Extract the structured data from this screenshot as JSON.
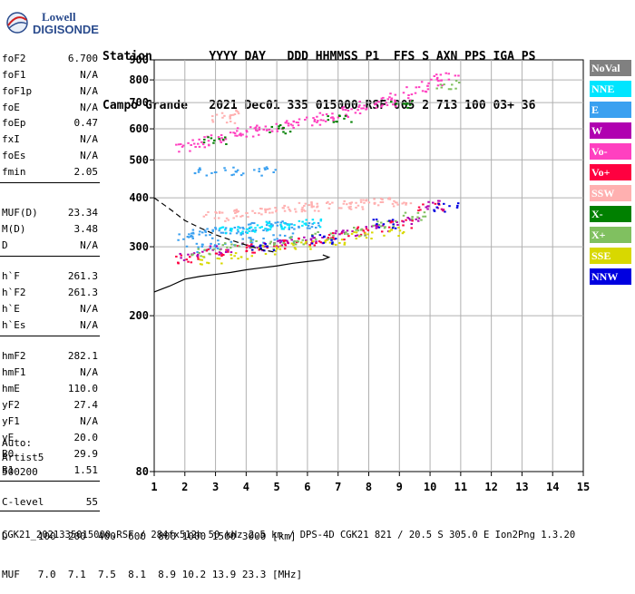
{
  "logo": {
    "line1": "Lowell",
    "line2": "DIGISONDE"
  },
  "header": {
    "row1": "Station        YYYY DAY   DDD HHMMSS P1  FFS S AXN PPS IGA PS",
    "row2": "Campo Grande   2021 Dec01 335 015000 RSF 005 2 713 100 03+ 36"
  },
  "params": [
    {
      "name": "foF2",
      "value": "6.700"
    },
    {
      "name": "foF1",
      "value": "N/A"
    },
    {
      "name": "foF1p",
      "value": "N/A"
    },
    {
      "name": "foE",
      "value": "N/A"
    },
    {
      "name": "foEp",
      "value": "0.47"
    },
    {
      "name": "fxI",
      "value": "N/A"
    },
    {
      "name": "foEs",
      "value": "N/A"
    },
    {
      "name": "fmin",
      "value": "2.05"
    },
    {
      "name": "MUF(D)",
      "value": "23.34"
    },
    {
      "name": "M(D)",
      "value": "3.48"
    },
    {
      "name": "D",
      "value": "N/A"
    },
    {
      "name": "h`F",
      "value": "261.3"
    },
    {
      "name": "h`F2",
      "value": "261.3"
    },
    {
      "name": "h`E",
      "value": "N/A"
    },
    {
      "name": "h`Es",
      "value": "N/A"
    },
    {
      "name": "hmF2",
      "value": "282.1"
    },
    {
      "name": "hmF1",
      "value": "N/A"
    },
    {
      "name": "hmE",
      "value": "110.0"
    },
    {
      "name": "yF2",
      "value": "27.4"
    },
    {
      "name": "yF1",
      "value": "N/A"
    },
    {
      "name": "yE",
      "value": "20.0"
    },
    {
      "name": "B0",
      "value": "29.9"
    },
    {
      "name": "B1",
      "value": "1.51"
    },
    {
      "name": "C-level",
      "value": "55"
    }
  ],
  "auto": {
    "line1": "Auto:",
    "line2": "Artist5",
    "line3": "500200"
  },
  "legend": [
    {
      "label": "NoVal",
      "color": "#808080"
    },
    {
      "label": "NNE",
      "color": "#00e5ff"
    },
    {
      "label": "E",
      "color": "#3aa0f0"
    },
    {
      "label": "W",
      "color": "#b000b0"
    },
    {
      "label": "Vo-",
      "color": "#ff40c0"
    },
    {
      "label": "Vo+",
      "color": "#ff0040"
    },
    {
      "label": "SSW",
      "color": "#ffb0b0"
    },
    {
      "label": "X-",
      "color": "#008000"
    },
    {
      "label": "X+",
      "color": "#80c060"
    },
    {
      "label": "SSE",
      "color": "#d8d800"
    },
    {
      "label": "NNW",
      "color": "#0000e0"
    }
  ],
  "footer": {
    "line1": "D     100  200  400  600  800 1000 1500 3000 [km]",
    "line2": "MUF   7.0  7.1  7.5  8.1  8.9 10.2 13.9 23.3 [MHz]",
    "line3": "CGK21_2021335015000.RSF / 284fx512h 50 kHz 2.5 km / DPS-4D CGK21 821 / 20.5 S 305.0 E Ion2Png 1.3.20"
  },
  "chart_data": {
    "type": "scatter",
    "xlim": [
      1,
      15
    ],
    "ylim": [
      80,
      900
    ],
    "y_scale": "log",
    "x_ticks": [
      1,
      2,
      3,
      4,
      5,
      6,
      7,
      8,
      9,
      10,
      11,
      12,
      13,
      14,
      15
    ],
    "y_ticks": [
      80,
      200,
      300,
      400,
      500,
      600,
      700,
      800,
      900
    ],
    "grid": true,
    "series": [
      {
        "name": "E",
        "color": "#3aa0f0",
        "x": [
          2.1,
          2.5,
          3.0,
          3.5,
          4.0,
          4.5,
          5.0,
          5.5,
          6.0,
          2.4,
          3.2,
          4.2,
          5.2,
          2.6,
          3.6,
          4.6
        ],
        "y": [
          320,
          325,
          330,
          332,
          335,
          338,
          340,
          342,
          345,
          300,
          305,
          310,
          318,
          470,
          470,
          470
        ]
      },
      {
        "name": "SSW",
        "color": "#ffb0b0",
        "x": [
          3.0,
          3.5,
          4.0,
          4.5,
          5.0,
          5.5,
          6.0,
          6.5,
          7.0,
          7.5,
          8.0,
          8.5,
          9.0,
          3.2,
          3.5
        ],
        "y": [
          360,
          365,
          368,
          372,
          375,
          378,
          380,
          382,
          384,
          386,
          390,
          392,
          394,
          640,
          655
        ]
      },
      {
        "name": "Vo-",
        "color": "#ff40c0",
        "x": [
          2.0,
          2.5,
          3.0,
          3.5,
          4.0,
          4.5,
          5.0,
          5.5,
          6.0,
          6.5,
          7.0,
          7.5,
          8.0,
          8.5,
          9.0,
          9.5,
          10.0,
          10.5
        ],
        "y": [
          540,
          555,
          570,
          580,
          590,
          600,
          610,
          620,
          630,
          645,
          660,
          675,
          690,
          705,
          725,
          760,
          790,
          815
        ]
      },
      {
        "name": "Vo+",
        "color": "#ff0040",
        "x": [
          2.0,
          3.0,
          4.0,
          5.0,
          6.0,
          7.0,
          8.0,
          9.0,
          10.0
        ],
        "y": [
          280,
          290,
          298,
          305,
          312,
          320,
          330,
          345,
          380
        ]
      },
      {
        "name": "W",
        "color": "#b000b0",
        "x": [
          2.2,
          3.2,
          4.2,
          5.2,
          6.2,
          7.2,
          8.2,
          9.2,
          10.2
        ],
        "y": [
          285,
          295,
          300,
          308,
          316,
          325,
          338,
          350,
          385
        ]
      },
      {
        "name": "X+",
        "color": "#80c060",
        "x": [
          2.5,
          3.5,
          4.5,
          5.5,
          6.5,
          7.5,
          8.5,
          9.5,
          10.5
        ],
        "y": [
          290,
          300,
          305,
          312,
          320,
          330,
          342,
          360,
          780
        ]
      },
      {
        "name": "SSE",
        "color": "#d8d800",
        "x": [
          2.8,
          3.8,
          4.8,
          5.8,
          6.8,
          7.8,
          8.8
        ],
        "y": [
          278,
          288,
          296,
          304,
          312,
          320,
          330
        ]
      },
      {
        "name": "NNE",
        "color": "#00e5ff",
        "x": [
          3.5,
          4.0,
          4.5,
          5.0,
          5.5,
          6.0
        ],
        "y": [
          330,
          335,
          338,
          340,
          342,
          345
        ]
      },
      {
        "name": "X-",
        "color": "#008000",
        "x": [
          3.0,
          5.0,
          7.0,
          9.0
        ],
        "y": [
          560,
          600,
          640,
          700
        ]
      },
      {
        "name": "NNW",
        "color": "#0000e0",
        "x": [
          4.5,
          6.5,
          8.5,
          10.5
        ],
        "y": [
          300,
          315,
          345,
          380
        ]
      }
    ],
    "profile_line": {
      "x": [
        1.0,
        1.5,
        2.0,
        2.5,
        3.0,
        3.5,
        4.0,
        4.5,
        5.0,
        5.5,
        6.0,
        6.5,
        6.7,
        6.5
      ],
      "y": [
        230,
        238,
        248,
        252,
        255,
        258,
        262,
        265,
        268,
        272,
        275,
        278,
        282,
        286
      ]
    },
    "profile_dashed": {
      "x": [
        1.0,
        1.5,
        2.0,
        2.5,
        3.0,
        3.5,
        4.0,
        4.5,
        5.0
      ],
      "y": [
        400,
        375,
        350,
        335,
        322,
        312,
        303,
        295,
        290
      ]
    }
  }
}
